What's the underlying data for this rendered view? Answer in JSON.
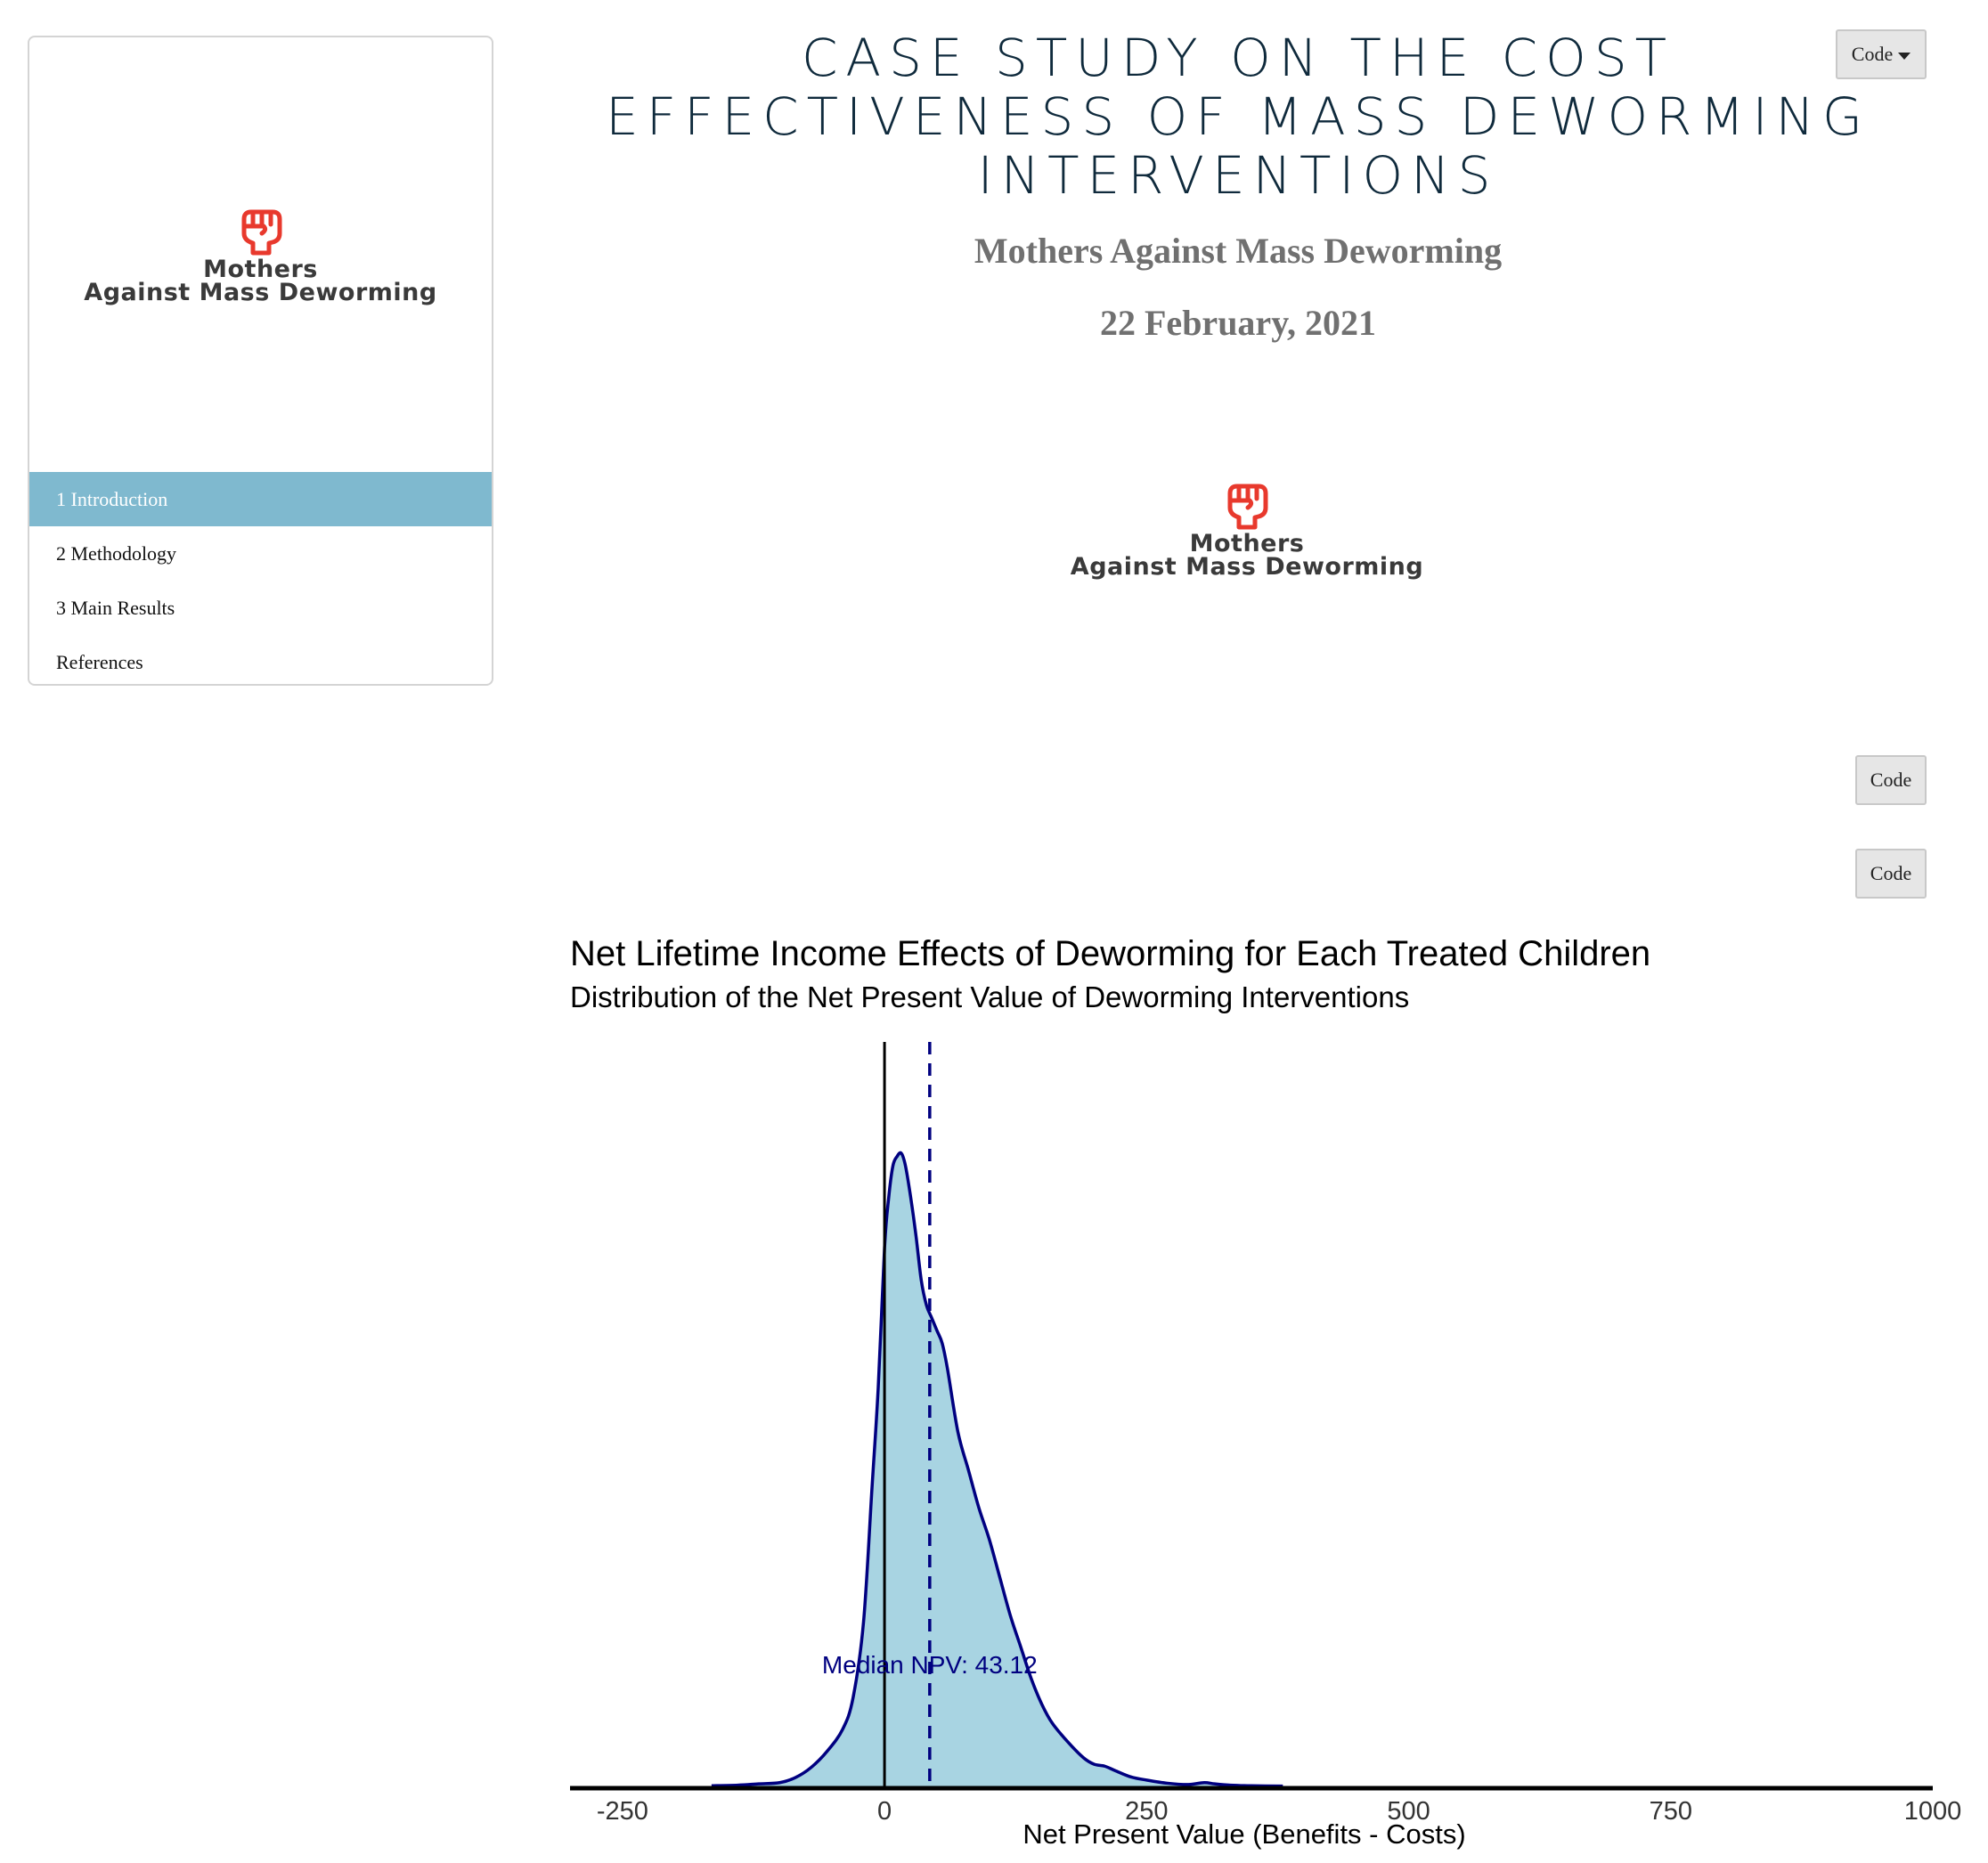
{
  "sidebar": {
    "logo": {
      "line1": "Mothers",
      "line2": "Against Mass Deworming"
    },
    "items": [
      {
        "label": "1 Introduction",
        "active": true
      },
      {
        "label": "2 Methodology",
        "active": false
      },
      {
        "label": "3 Main Results",
        "active": false
      },
      {
        "label": "References",
        "active": false
      }
    ]
  },
  "header": {
    "title": "Case Study on the Cost Effectiveness of Mass Deworming Interventions",
    "author": "Mothers Against Mass Deworming",
    "date": "22 February, 2021",
    "code_menu_label": "Code"
  },
  "main_logo": {
    "line1": "Mothers",
    "line2": "Against Mass Deworming"
  },
  "code_buttons": [
    "Code",
    "Code"
  ],
  "colors": {
    "logo_red": "#e8392d",
    "toc_active": "#7fb9cf",
    "density_fill": "#a8d4e2",
    "density_line": "#000080"
  },
  "chart_data": {
    "type": "area",
    "title": "Net Lifetime Income Effects of Deworming for Each Treated Children",
    "subtitle": "Distribution of the Net Present Value of Deworming Interventions",
    "xlabel": "Net Present Value (Benefits -  Costs)",
    "ylabel": "",
    "xlim": [
      -300,
      1000
    ],
    "xticks": [
      "-250",
      "0",
      "250",
      "500",
      "750",
      "1000"
    ],
    "grid": false,
    "annotation": "Median NPV:  43.12",
    "median": 43.12,
    "zero_line": 0,
    "x": [
      -165,
      -140,
      -120,
      -100,
      -85,
      -70,
      -55,
      -40,
      -30,
      -20,
      -12,
      -6,
      0,
      4,
      8,
      12,
      16,
      20,
      25,
      30,
      35,
      40,
      45,
      50,
      55,
      60,
      70,
      80,
      90,
      100,
      110,
      120,
      130,
      140,
      150,
      160,
      175,
      190,
      200,
      210,
      220,
      235,
      250,
      270,
      290,
      305,
      315,
      330,
      350,
      380
    ],
    "density": [
      0.001,
      0.002,
      0.004,
      0.006,
      0.014,
      0.03,
      0.055,
      0.09,
      0.14,
      0.26,
      0.47,
      0.63,
      0.85,
      0.93,
      0.98,
      0.995,
      1.0,
      0.98,
      0.93,
      0.87,
      0.8,
      0.76,
      0.74,
      0.72,
      0.7,
      0.66,
      0.56,
      0.5,
      0.44,
      0.39,
      0.33,
      0.27,
      0.22,
      0.17,
      0.13,
      0.1,
      0.07,
      0.045,
      0.035,
      0.032,
      0.025,
      0.015,
      0.01,
      0.005,
      0.003,
      0.006,
      0.004,
      0.002,
      0.001,
      0.0005
    ]
  }
}
